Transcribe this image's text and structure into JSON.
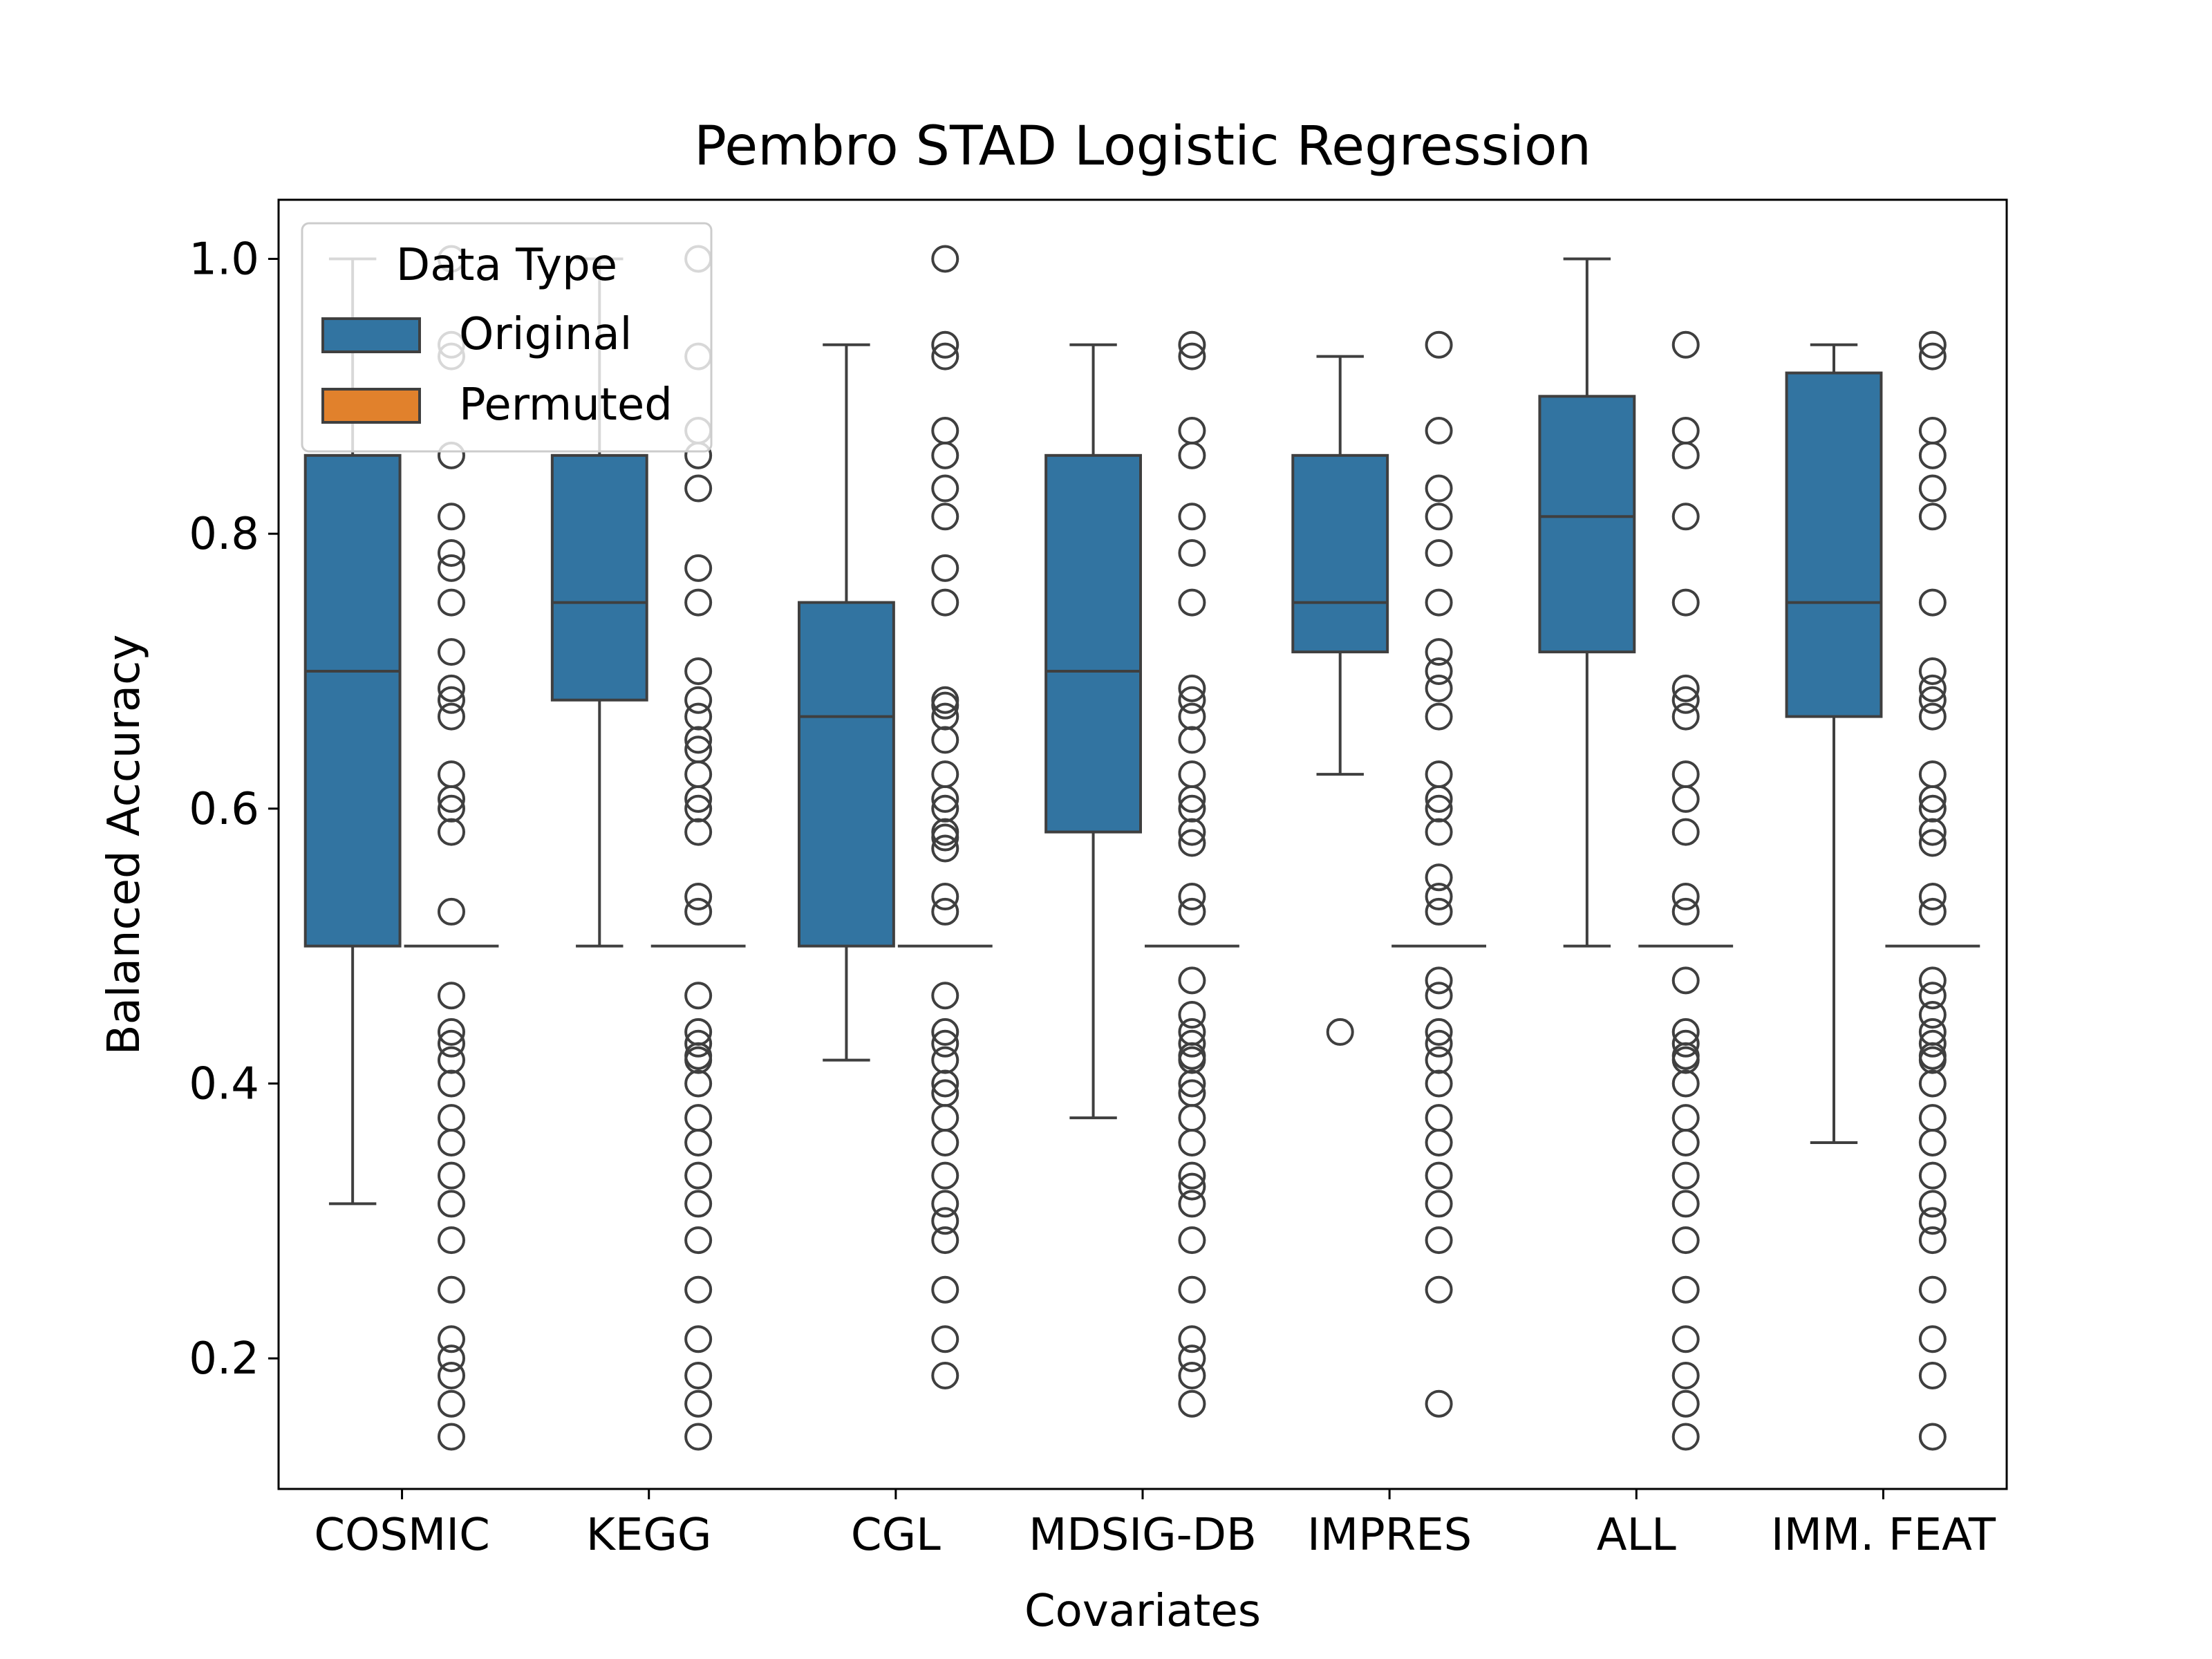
{
  "chart_data": {
    "type": "box",
    "title": "Pembro  STAD  Logistic Regression",
    "xlabel": "Covariates",
    "ylabel": "Balanced Accuracy",
    "ylim": [
      0.105,
      1.043
    ],
    "yticks": [
      "0.2",
      "0.4",
      "0.6",
      "0.8",
      "1.0"
    ],
    "ytick_values": [
      0.2,
      0.4,
      0.6,
      0.8,
      1.0
    ],
    "categories": [
      "COSMIC",
      "KEGG",
      "CGL",
      "MDSIG-DB",
      "IMPRES",
      "ALL",
      "IMM. FEAT"
    ],
    "legend": {
      "title": "Data Type",
      "placement": "upper-left",
      "entries": [
        {
          "label": "Original",
          "color": "#3274a1"
        },
        {
          "label": "Permuted",
          "color": "#e1812c"
        }
      ]
    },
    "series": [
      {
        "name": "Original",
        "color": "#3274a1",
        "boxes": [
          {
            "whislo": 0.3125,
            "q1": 0.5,
            "med": 0.7,
            "q3": 0.857,
            "whishi": 1.0,
            "fliers": []
          },
          {
            "whislo": 0.5,
            "q1": 0.679,
            "med": 0.75,
            "q3": 0.857,
            "whishi": 1.0,
            "fliers": []
          },
          {
            "whislo": 0.417,
            "q1": 0.5,
            "med": 0.667,
            "q3": 0.75,
            "whishi": 0.9375,
            "fliers": []
          },
          {
            "whislo": 0.375,
            "q1": 0.583,
            "med": 0.7,
            "q3": 0.857,
            "whishi": 0.9375,
            "fliers": []
          },
          {
            "whislo": 0.625,
            "q1": 0.714,
            "med": 0.75,
            "q3": 0.857,
            "whishi": 0.929,
            "fliers": [
              0.4375
            ]
          },
          {
            "whislo": 0.5,
            "q1": 0.714,
            "med": 0.8125,
            "q3": 0.9,
            "whishi": 1.0,
            "fliers": []
          },
          {
            "whislo": 0.357,
            "q1": 0.667,
            "med": 0.75,
            "q3": 0.917,
            "whishi": 0.9375,
            "fliers": []
          }
        ]
      },
      {
        "name": "Permuted",
        "color": "#e1812c",
        "boxes": [
          {
            "med": 0.5,
            "fliers": [
              0.143,
              0.167,
              0.1875,
              0.2,
              0.214,
              0.25,
              0.286,
              0.3125,
              0.333,
              0.357,
              0.375,
              0.4,
              0.417,
              0.429,
              0.4375,
              0.464,
              0.525,
              0.583,
              0.6,
              0.607,
              0.625,
              0.667,
              0.679,
              0.6875,
              0.714,
              0.75,
              0.775,
              0.786,
              0.8125,
              0.857,
              0.929,
              0.9375,
              1.0
            ]
          },
          {
            "med": 0.5,
            "fliers": [
              0.143,
              0.167,
              0.1875,
              0.214,
              0.25,
              0.286,
              0.3125,
              0.333,
              0.357,
              0.375,
              0.4,
              0.417,
              0.42,
              0.429,
              0.4375,
              0.464,
              0.525,
              0.536,
              0.583,
              0.6,
              0.607,
              0.625,
              0.643,
              0.65,
              0.667,
              0.679,
              0.7,
              0.75,
              0.775,
              0.833,
              0.857,
              0.875,
              0.929,
              1.0
            ]
          },
          {
            "med": 0.5,
            "fliers": [
              0.1875,
              0.214,
              0.25,
              0.286,
              0.3,
              0.3125,
              0.333,
              0.357,
              0.375,
              0.393,
              0.4,
              0.417,
              0.429,
              0.4375,
              0.464,
              0.525,
              0.536,
              0.571,
              0.579,
              0.583,
              0.6,
              0.607,
              0.625,
              0.65,
              0.667,
              0.675,
              0.679,
              0.75,
              0.775,
              0.8125,
              0.833,
              0.857,
              0.875,
              0.929,
              0.9375,
              1.0
            ]
          },
          {
            "med": 0.5,
            "fliers": [
              0.167,
              0.1875,
              0.2,
              0.214,
              0.25,
              0.286,
              0.3125,
              0.325,
              0.333,
              0.357,
              0.375,
              0.393,
              0.4,
              0.417,
              0.42,
              0.429,
              0.4375,
              0.45,
              0.475,
              0.525,
              0.536,
              0.575,
              0.583,
              0.6,
              0.607,
              0.625,
              0.65,
              0.667,
              0.679,
              0.6875,
              0.75,
              0.786,
              0.8125,
              0.857,
              0.875,
              0.929,
              0.9375
            ]
          },
          {
            "med": 0.5,
            "fliers": [
              0.167,
              0.25,
              0.286,
              0.3125,
              0.333,
              0.357,
              0.375,
              0.4,
              0.417,
              0.429,
              0.4375,
              0.464,
              0.475,
              0.525,
              0.536,
              0.55,
              0.583,
              0.6,
              0.607,
              0.625,
              0.667,
              0.6875,
              0.7,
              0.714,
              0.75,
              0.786,
              0.8125,
              0.833,
              0.875,
              0.9375
            ]
          },
          {
            "med": 0.5,
            "fliers": [
              0.143,
              0.167,
              0.1875,
              0.214,
              0.25,
              0.286,
              0.3125,
              0.333,
              0.357,
              0.375,
              0.4,
              0.417,
              0.42,
              0.429,
              0.4375,
              0.475,
              0.525,
              0.536,
              0.583,
              0.607,
              0.625,
              0.667,
              0.679,
              0.6875,
              0.75,
              0.8125,
              0.857,
              0.875,
              0.9375
            ]
          },
          {
            "med": 0.5,
            "fliers": [
              0.143,
              0.1875,
              0.214,
              0.25,
              0.286,
              0.3,
              0.3125,
              0.333,
              0.357,
              0.375,
              0.4,
              0.417,
              0.42,
              0.429,
              0.4375,
              0.45,
              0.464,
              0.475,
              0.525,
              0.536,
              0.575,
              0.583,
              0.6,
              0.607,
              0.625,
              0.667,
              0.679,
              0.6875,
              0.7,
              0.75,
              0.8125,
              0.833,
              0.857,
              0.875,
              0.929,
              0.9375
            ]
          }
        ]
      }
    ]
  }
}
